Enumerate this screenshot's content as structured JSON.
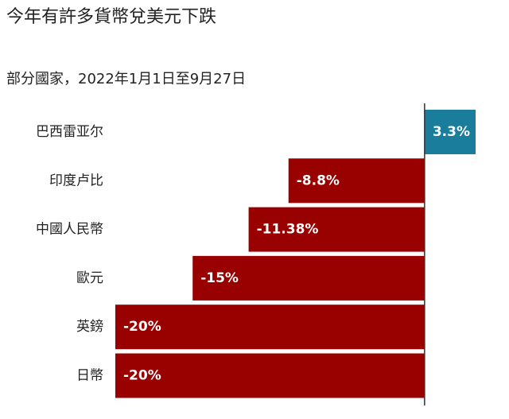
{
  "chart_data": {
    "type": "bar",
    "orientation": "horizontal",
    "title": "今年有許多貨幣兌美元下跌",
    "subtitle": "部分國家，2022年1月1日至9月27日",
    "categories": [
      "巴西雷亚尔",
      "印度卢比",
      "中國人民幣",
      "歐元",
      "英鎊",
      "日幣"
    ],
    "values": [
      3.3,
      -8.8,
      -11.38,
      -15,
      -20,
      -20
    ],
    "value_labels": [
      "3.3%",
      "-8.8%",
      "-11.38%",
      "-15%",
      "-20%",
      "-20%"
    ],
    "colors": [
      "#1a7d9c",
      "#990000",
      "#990000",
      "#990000",
      "#990000",
      "#990000"
    ]
  }
}
